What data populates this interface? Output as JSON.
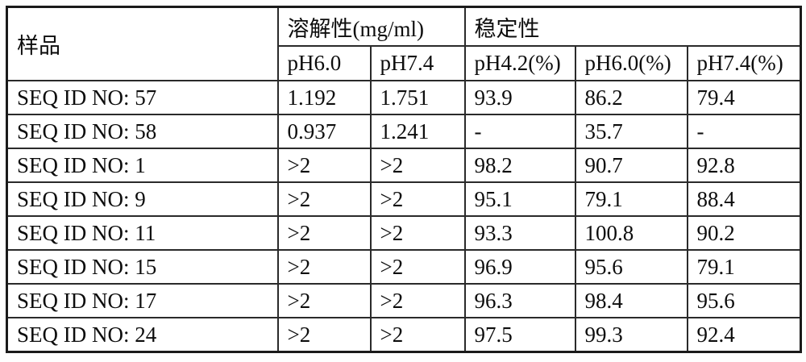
{
  "table": {
    "header": {
      "sample": "样品",
      "solubility_group": "溶解性(mg/ml)",
      "stability_group": "稳定性",
      "sub_columns": [
        "pH6.0",
        "pH7.4",
        "pH4.2(%)",
        "pH6.0(%)",
        "pH7.4(%)"
      ]
    },
    "rows": [
      {
        "sample": "SEQ ID NO: 57",
        "values": [
          "1.192",
          "1.751",
          "93.9",
          "86.2",
          "79.4"
        ]
      },
      {
        "sample": "SEQ ID NO: 58",
        "values": [
          "0.937",
          "1.241",
          "-",
          "35.7",
          "-"
        ]
      },
      {
        "sample": "SEQ ID NO: 1",
        "values": [
          ">2",
          ">2",
          "98.2",
          "90.7",
          "92.8"
        ]
      },
      {
        "sample": "SEQ ID NO: 9",
        "values": [
          ">2",
          ">2",
          "95.1",
          "79.1",
          "88.4"
        ]
      },
      {
        "sample": "SEQ ID NO: 11",
        "values": [
          ">2",
          ">2",
          "93.3",
          "100.8",
          "90.2"
        ]
      },
      {
        "sample": "SEQ ID NO: 15",
        "values": [
          ">2",
          ">2",
          "96.9",
          "95.6",
          "79.1"
        ]
      },
      {
        "sample": "SEQ ID NO: 17",
        "values": [
          ">2",
          ">2",
          "96.3",
          "98.4",
          "95.6"
        ]
      },
      {
        "sample": "SEQ ID NO: 24",
        "values": [
          ">2",
          ">2",
          "97.5",
          "99.3",
          "92.4"
        ]
      }
    ],
    "colors": {
      "border": "#2a2a2a",
      "text": "#0d0d0d",
      "background": "#ffffff"
    }
  }
}
